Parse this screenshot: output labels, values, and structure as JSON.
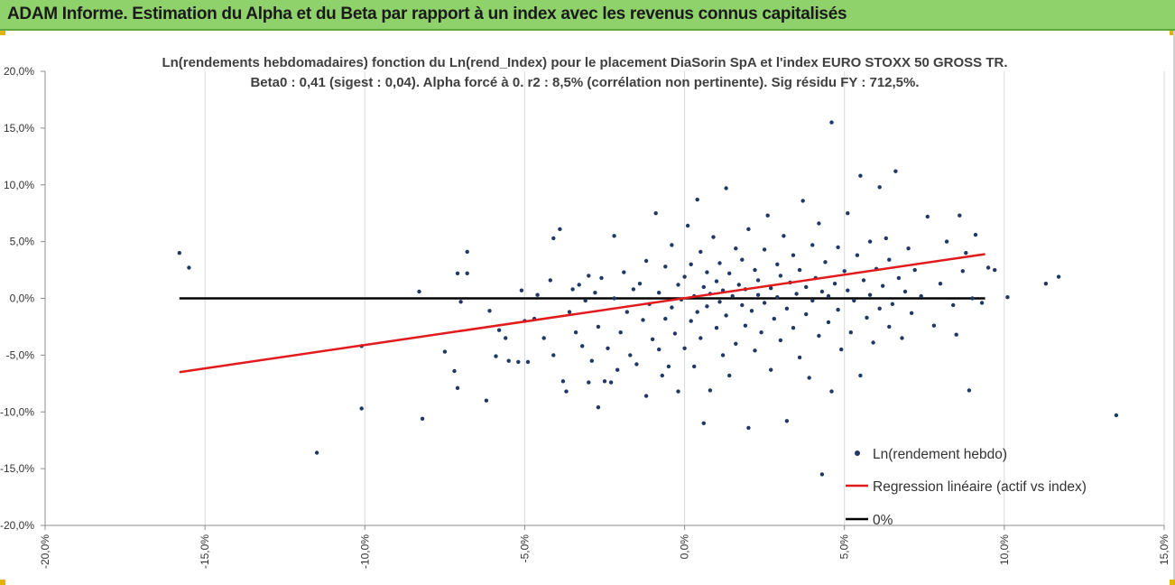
{
  "banner": {
    "title": "ADAM Informe. Estimation du Alpha et du Beta par rapport à un index avec les revenus connus capitalisés",
    "background": "#8fd16a"
  },
  "chart_data": {
    "type": "scatter",
    "title_line1": "Ln(rendements hebdomadaires) fonction du Ln(rend_Index) pour le placement DiaSorin SpA et l'index EURO STOXX 50 GROSS TR.",
    "title_line2": "Beta0 : 0,41  (sigest : 0,04).  Alpha forcé à 0. r2 : 8,5% (corrélation non pertinente). Sig résidu FY : 712,5%.",
    "xlim": [
      -0.2,
      0.15
    ],
    "ylim": [
      -0.2,
      0.2
    ],
    "x_ticks": [
      -0.2,
      -0.15,
      -0.1,
      -0.05,
      0.0,
      0.05,
      0.1,
      0.15
    ],
    "x_tick_labels": [
      "-20,0%",
      "-15,0%",
      "-10,0%",
      "-5,0%",
      "0,0%",
      "5,0%",
      "10,0%",
      "15,0%"
    ],
    "y_ticks": [
      0.2,
      0.15,
      0.1,
      0.05,
      0.0,
      -0.05,
      -0.1,
      -0.15,
      -0.2
    ],
    "y_tick_labels": [
      "20,0%",
      "15,0%",
      "10,0%",
      "5,0%",
      "0,0%",
      "-5,0%",
      "-10,0%",
      "-15,0%",
      "-20,0%"
    ],
    "grid": "vertical",
    "legend_position": "bottom-right",
    "series": [
      {
        "name": "Ln(rendement hebdo)",
        "kind": "scatter",
        "color": "#1f3864",
        "points": [
          [
            -0.158,
            0.04
          ],
          [
            -0.155,
            0.027
          ],
          [
            -0.115,
            -0.136
          ],
          [
            -0.101,
            -0.097
          ],
          [
            -0.101,
            -0.042
          ],
          [
            -0.083,
            0.006
          ],
          [
            -0.082,
            -0.106
          ],
          [
            -0.075,
            -0.047
          ],
          [
            -0.072,
            -0.064
          ],
          [
            -0.071,
            -0.079
          ],
          [
            -0.071,
            0.022
          ],
          [
            -0.07,
            -0.003
          ],
          [
            -0.068,
            0.041
          ],
          [
            -0.068,
            0.022
          ],
          [
            -0.062,
            -0.09
          ],
          [
            -0.061,
            -0.011
          ],
          [
            -0.059,
            -0.051
          ],
          [
            -0.058,
            -0.028
          ],
          [
            -0.056,
            -0.035
          ],
          [
            -0.055,
            -0.055
          ],
          [
            -0.052,
            -0.056
          ],
          [
            -0.051,
            0.007
          ],
          [
            -0.05,
            -0.02
          ],
          [
            -0.049,
            -0.056
          ],
          [
            -0.047,
            -0.018
          ],
          [
            -0.046,
            0.003
          ],
          [
            -0.044,
            -0.035
          ],
          [
            -0.042,
            0.016
          ],
          [
            -0.041,
            -0.05
          ],
          [
            -0.041,
            0.053
          ],
          [
            -0.039,
            0.061
          ],
          [
            -0.038,
            -0.073
          ],
          [
            -0.037,
            -0.082
          ],
          [
            -0.036,
            -0.012
          ],
          [
            -0.035,
            0.008
          ],
          [
            -0.034,
            -0.03
          ],
          [
            -0.033,
            0.012
          ],
          [
            -0.032,
            -0.042
          ],
          [
            -0.031,
            -0.002
          ],
          [
            -0.03,
            -0.074
          ],
          [
            -0.03,
            0.02
          ],
          [
            -0.029,
            -0.055
          ],
          [
            -0.028,
            0.005
          ],
          [
            -0.027,
            -0.096
          ],
          [
            -0.027,
            -0.025
          ],
          [
            -0.026,
            0.018
          ],
          [
            -0.025,
            -0.073
          ],
          [
            -0.024,
            -0.044
          ],
          [
            -0.023,
            -0.074
          ],
          [
            -0.022,
            0.0
          ],
          [
            -0.022,
            0.055
          ],
          [
            -0.021,
            -0.063
          ],
          [
            -0.02,
            -0.03
          ],
          [
            -0.019,
            0.023
          ],
          [
            -0.018,
            -0.012
          ],
          [
            -0.017,
            -0.05
          ],
          [
            -0.016,
            0.008
          ],
          [
            -0.015,
            -0.058
          ],
          [
            -0.014,
            0.013
          ],
          [
            -0.013,
            -0.019
          ],
          [
            -0.012,
            -0.086
          ],
          [
            -0.012,
            0.033
          ],
          [
            -0.011,
            -0.005
          ],
          [
            -0.01,
            -0.036
          ],
          [
            -0.009,
            0.075
          ],
          [
            -0.008,
            -0.045
          ],
          [
            -0.008,
            0.005
          ],
          [
            -0.007,
            -0.068
          ],
          [
            -0.006,
            -0.018
          ],
          [
            -0.006,
            0.028
          ],
          [
            -0.005,
            -0.06
          ],
          [
            -0.004,
            -0.008
          ],
          [
            -0.004,
            0.047
          ],
          [
            -0.003,
            -0.031
          ],
          [
            -0.002,
            0.012
          ],
          [
            -0.002,
            -0.082
          ],
          [
            -0.001,
            -0.001
          ],
          [
            0.0,
            -0.044
          ],
          [
            0.0,
            0.019
          ],
          [
            0.001,
            0.064
          ],
          [
            0.002,
            -0.02
          ],
          [
            0.002,
            0.03
          ],
          [
            0.003,
            -0.06
          ],
          [
            0.003,
            0.002
          ],
          [
            0.004,
            -0.012
          ],
          [
            0.004,
            0.087
          ],
          [
            0.005,
            0.041
          ],
          [
            0.005,
            -0.035
          ],
          [
            0.006,
            0.01
          ],
          [
            0.006,
            -0.11
          ],
          [
            0.007,
            -0.007
          ],
          [
            0.007,
            0.023
          ],
          [
            0.008,
            -0.081
          ],
          [
            0.008,
            0.004
          ],
          [
            0.009,
            0.054
          ],
          [
            0.01,
            -0.026
          ],
          [
            0.01,
            0.015
          ],
          [
            0.011,
            -0.003
          ],
          [
            0.011,
            0.031
          ],
          [
            0.012,
            -0.05
          ],
          [
            0.012,
            0.007
          ],
          [
            0.013,
            0.097
          ],
          [
            0.013,
            -0.015
          ],
          [
            0.014,
            0.022
          ],
          [
            0.014,
            -0.068
          ],
          [
            0.015,
            0.002
          ],
          [
            0.016,
            0.044
          ],
          [
            0.016,
            -0.04
          ],
          [
            0.017,
            0.012
          ],
          [
            0.018,
            -0.006
          ],
          [
            0.018,
            0.034
          ],
          [
            0.019,
            -0.024
          ],
          [
            0.019,
            0.008
          ],
          [
            0.02,
            -0.114
          ],
          [
            0.02,
            0.061
          ],
          [
            0.021,
            -0.011
          ],
          [
            0.022,
            0.025
          ],
          [
            0.022,
            -0.046
          ],
          [
            0.023,
            0.003
          ],
          [
            0.023,
            0.016
          ],
          [
            0.024,
            -0.03
          ],
          [
            0.025,
            0.043
          ],
          [
            0.025,
            -0.004
          ],
          [
            0.026,
            0.073
          ],
          [
            0.027,
            -0.063
          ],
          [
            0.027,
            0.009
          ],
          [
            0.028,
            -0.018
          ],
          [
            0.029,
            0.03
          ],
          [
            0.029,
            0.001
          ],
          [
            0.03,
            -0.037
          ],
          [
            0.03,
            0.02
          ],
          [
            0.031,
            0.055
          ],
          [
            0.032,
            -0.009
          ],
          [
            0.032,
            -0.108
          ],
          [
            0.033,
            0.014
          ],
          [
            0.034,
            0.038
          ],
          [
            0.034,
            -0.026
          ],
          [
            0.035,
            0.004
          ],
          [
            0.036,
            -0.052
          ],
          [
            0.036,
            0.025
          ],
          [
            0.037,
            0.086
          ],
          [
            0.038,
            -0.014
          ],
          [
            0.038,
            0.01
          ],
          [
            0.039,
            -0.07
          ],
          [
            0.04,
            0.047
          ],
          [
            0.04,
            -0.002
          ],
          [
            0.041,
            0.018
          ],
          [
            0.042,
            -0.033
          ],
          [
            0.042,
            0.066
          ],
          [
            0.043,
            -0.155
          ],
          [
            0.043,
            0.006
          ],
          [
            0.044,
            0.032
          ],
          [
            0.045,
            -0.021
          ],
          [
            0.045,
            0.002
          ],
          [
            0.046,
            0.155
          ],
          [
            0.046,
            -0.082
          ],
          [
            0.047,
            0.013
          ],
          [
            0.048,
            0.045
          ],
          [
            0.048,
            -0.01
          ],
          [
            0.049,
            -0.045
          ],
          [
            0.05,
            0.024
          ],
          [
            0.051,
            0.007
          ],
          [
            0.051,
            0.075
          ],
          [
            0.052,
            -0.03
          ],
          [
            0.053,
            -0.002
          ],
          [
            0.054,
            0.038
          ],
          [
            0.055,
            0.108
          ],
          [
            0.055,
            -0.068
          ],
          [
            0.056,
            0.016
          ],
          [
            0.057,
            -0.017
          ],
          [
            0.058,
            0.05
          ],
          [
            0.058,
            0.003
          ],
          [
            0.059,
            -0.039
          ],
          [
            0.06,
            0.026
          ],
          [
            0.061,
            0.098
          ],
          [
            0.061,
            -0.009
          ],
          [
            0.062,
            0.011
          ],
          [
            0.063,
            0.053
          ],
          [
            0.064,
            -0.025
          ],
          [
            0.064,
            0.034
          ],
          [
            0.065,
            -0.005
          ],
          [
            0.066,
            0.112
          ],
          [
            0.067,
            0.018
          ],
          [
            0.068,
            -0.035
          ],
          [
            0.069,
            0.006
          ],
          [
            0.07,
            0.044
          ],
          [
            0.071,
            -0.013
          ],
          [
            0.072,
            0.025
          ],
          [
            0.074,
            0.002
          ],
          [
            0.076,
            0.072
          ],
          [
            0.078,
            -0.024
          ],
          [
            0.08,
            0.013
          ],
          [
            0.082,
            0.05
          ],
          [
            0.084,
            -0.006
          ],
          [
            0.085,
            -0.032
          ],
          [
            0.086,
            0.073
          ],
          [
            0.087,
            0.024
          ],
          [
            0.088,
            0.04
          ],
          [
            0.089,
            -0.081
          ],
          [
            0.09,
            0.0
          ],
          [
            0.091,
            0.056
          ],
          [
            0.093,
            -0.004
          ],
          [
            0.095,
            0.027
          ],
          [
            0.097,
            0.025
          ],
          [
            0.101,
            0.001
          ],
          [
            0.113,
            0.013
          ],
          [
            0.117,
            0.019
          ],
          [
            0.135,
            -0.103
          ]
        ]
      },
      {
        "name": "Regression linéaire (actif vs index)",
        "kind": "line",
        "color": "#e31a1c",
        "x": [
          -0.158,
          0.094
        ],
        "y": [
          -0.065,
          0.039
        ]
      },
      {
        "name": "0%",
        "kind": "line",
        "color": "#000000",
        "x": [
          -0.158,
          0.094
        ],
        "y": [
          0.0,
          0.0
        ]
      }
    ],
    "legend": [
      "Ln(rendement hebdo)",
      "Regression linéaire (actif vs index)",
      "0%"
    ]
  }
}
